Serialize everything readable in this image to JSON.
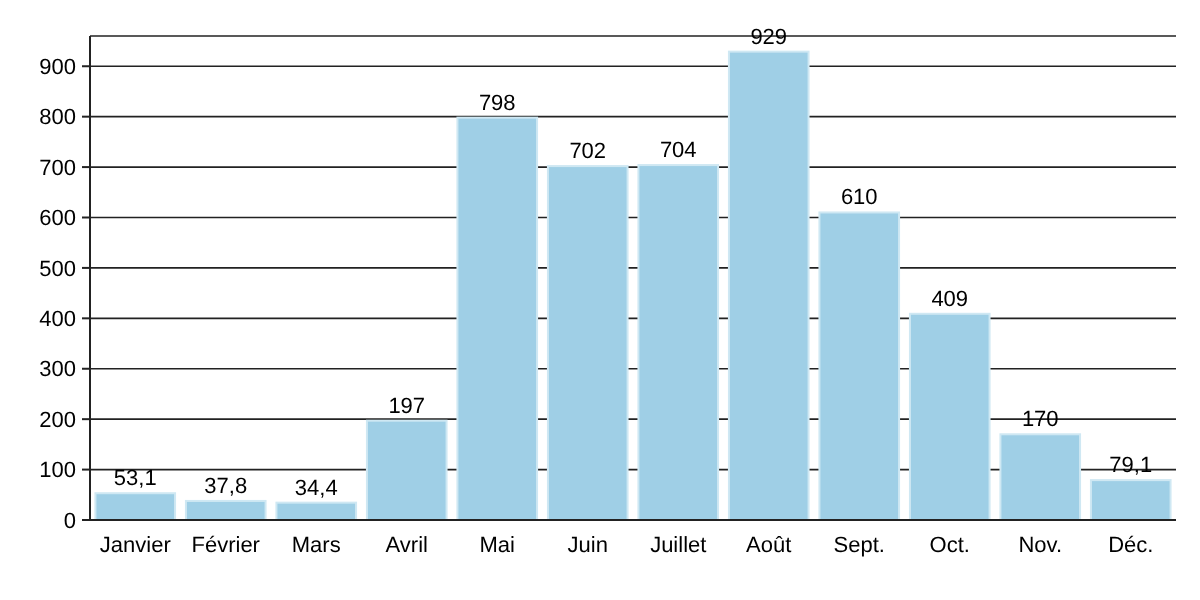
{
  "chart_data": {
    "type": "bar",
    "categories": [
      "Janvier",
      "Février",
      "Mars",
      "Avril",
      "Mai",
      "Juin",
      "Juillet",
      "Août",
      "Sept.",
      "Oct.",
      "Nov.",
      "Déc."
    ],
    "values": [
      53.1,
      37.8,
      34.4,
      197,
      798,
      702,
      704,
      929,
      610,
      409,
      170,
      79.1
    ],
    "value_labels": [
      "53,1",
      "37,8",
      "34,4",
      "197",
      "798",
      "702",
      "704",
      "929",
      "610",
      "409",
      "170",
      "79,1"
    ],
    "color": "#9fcfe6",
    "ylim": [
      0,
      960
    ],
    "yticks": [
      0,
      100,
      200,
      300,
      400,
      500,
      600,
      700,
      800,
      900
    ],
    "grid": "y"
  }
}
